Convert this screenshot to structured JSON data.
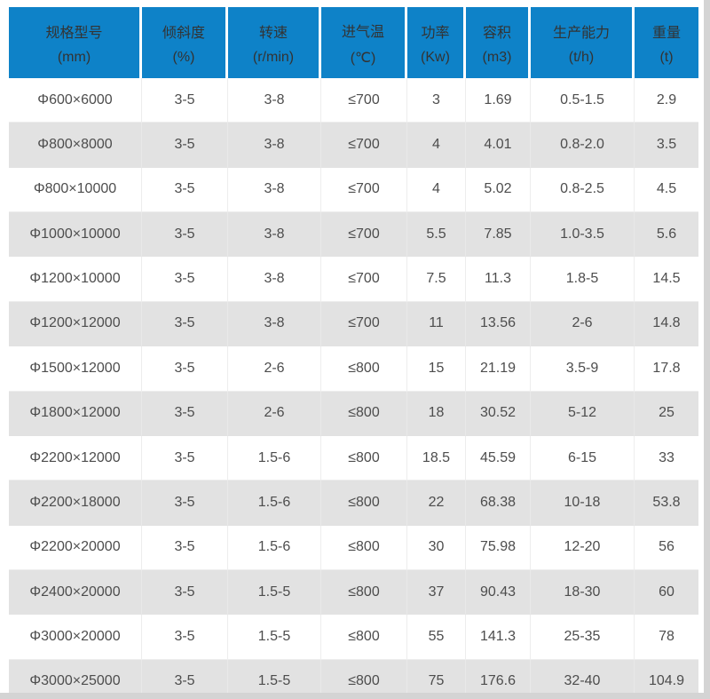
{
  "colors": {
    "header_bg": "#0e82c8",
    "header_text": "#333333",
    "body_text": "#4d4d4d",
    "row_stripe": "#e2e2e2",
    "cell_border": "#ededed",
    "stripe_border": "#e9e9e9",
    "edge_shadow": "#d4d4d4"
  },
  "chart_data": {
    "type": "table",
    "columns": [
      {
        "title": "规格型号",
        "unit": "(mm)"
      },
      {
        "title": "倾斜度",
        "unit": "(%)"
      },
      {
        "title": "转速",
        "unit": "(r/min)"
      },
      {
        "title": "进气温",
        "unit": "(℃)"
      },
      {
        "title": "功率",
        "unit": "(Kw)"
      },
      {
        "title": "容积",
        "unit": "(m3)"
      },
      {
        "title": "生产能力",
        "unit": "(t/h)"
      },
      {
        "title": "重量",
        "unit": "(t)"
      }
    ],
    "rows": [
      [
        "Φ600×6000",
        "3-5",
        "3-8",
        "≤700",
        "3",
        "1.69",
        "0.5-1.5",
        "2.9"
      ],
      [
        "Φ800×8000",
        "3-5",
        "3-8",
        "≤700",
        "4",
        "4.01",
        "0.8-2.0",
        "3.5"
      ],
      [
        "Φ800×10000",
        "3-5",
        "3-8",
        "≤700",
        "4",
        "5.02",
        "0.8-2.5",
        "4.5"
      ],
      [
        "Φ1000×10000",
        "3-5",
        "3-8",
        "≤700",
        "5.5",
        "7.85",
        "1.0-3.5",
        "5.6"
      ],
      [
        "Φ1200×10000",
        "3-5",
        "3-8",
        "≤700",
        "7.5",
        "11.3",
        "1.8-5",
        "14.5"
      ],
      [
        "Φ1200×12000",
        "3-5",
        "3-8",
        "≤700",
        "11",
        "13.56",
        "2-6",
        "14.8"
      ],
      [
        "Φ1500×12000",
        "3-5",
        "2-6",
        "≤800",
        "15",
        "21.19",
        "3.5-9",
        "17.8"
      ],
      [
        "Φ1800×12000",
        "3-5",
        "2-6",
        "≤800",
        "18",
        "30.52",
        "5-12",
        "25"
      ],
      [
        "Φ2200×12000",
        "3-5",
        "1.5-6",
        "≤800",
        "18.5",
        "45.59",
        "6-15",
        "33"
      ],
      [
        "Φ2200×18000",
        "3-5",
        "1.5-6",
        "≤800",
        "22",
        "68.38",
        "10-18",
        "53.8"
      ],
      [
        "Φ2200×20000",
        "3-5",
        "1.5-6",
        "≤800",
        "30",
        "75.98",
        "12-20",
        "56"
      ],
      [
        "Φ2400×20000",
        "3-5",
        "1.5-5",
        "≤800",
        "37",
        "90.43",
        "18-30",
        "60"
      ],
      [
        "Φ3000×20000",
        "3-5",
        "1.5-5",
        "≤800",
        "55",
        "141.3",
        "25-35",
        "78"
      ],
      [
        "Φ3000×25000",
        "3-5",
        "1.5-5",
        "≤800",
        "75",
        "176.6",
        "32-40",
        "104.9"
      ]
    ]
  }
}
